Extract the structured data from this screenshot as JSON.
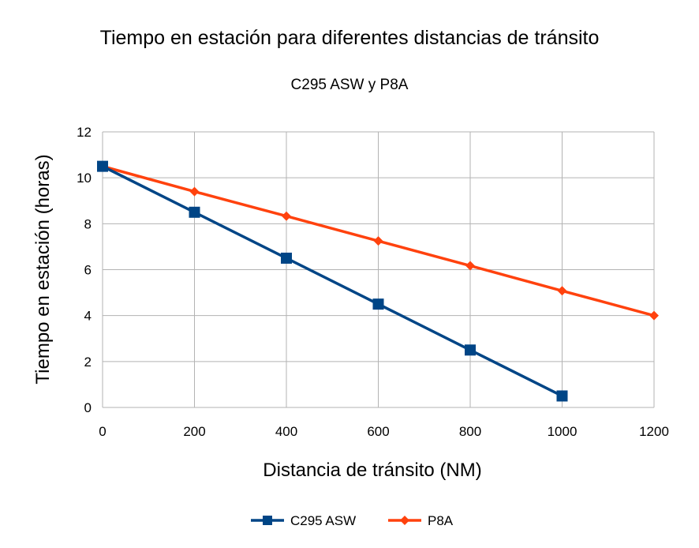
{
  "chart_data": {
    "type": "line",
    "title": "Tiempo en estación para diferentes distancias de tránsito",
    "subtitle": "C295 ASW y P8A",
    "xlabel": "Distancia de tránsito (NM)",
    "ylabel": "Tiempo en estación (horas)",
    "xlim": [
      0,
      1200
    ],
    "ylim": [
      0,
      12
    ],
    "x_ticks": [
      "0",
      "200",
      "400",
      "600",
      "800",
      "1000",
      "1200"
    ],
    "y_ticks": [
      "0",
      "2",
      "4",
      "6",
      "8",
      "10",
      "12"
    ],
    "grid": true,
    "legend_position": "bottom",
    "series": [
      {
        "name": "C295 ASW",
        "color": "#004586",
        "marker": "square",
        "x": [
          0,
          200,
          400,
          600,
          800,
          1000
        ],
        "y": [
          10.5,
          8.5,
          6.5,
          4.5,
          2.5,
          0.5
        ]
      },
      {
        "name": "P8A",
        "color": "#ff420e",
        "marker": "diamond",
        "x": [
          0,
          200,
          400,
          600,
          800,
          1000,
          1200
        ],
        "y": [
          10.5,
          9.4,
          8.33,
          7.25,
          6.17,
          5.08,
          4.0
        ]
      }
    ]
  }
}
